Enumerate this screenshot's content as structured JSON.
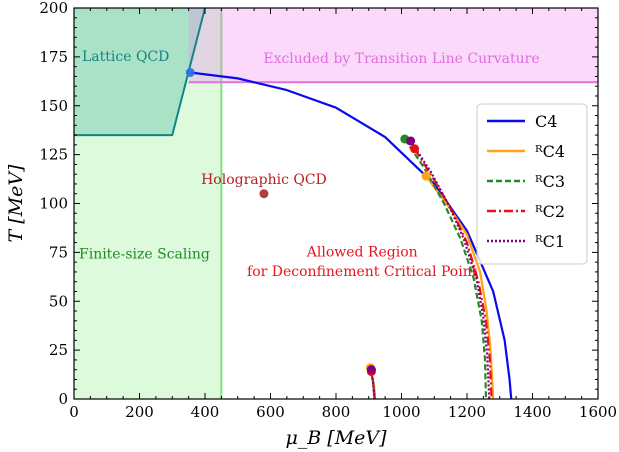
{
  "chart_data": {
    "type": "line",
    "xlabel": "μ_B [MeV]",
    "ylabel": "T [MeV]",
    "xlim": [
      0,
      1600
    ],
    "ylim": [
      0,
      200
    ],
    "xticks": [
      0,
      200,
      400,
      600,
      800,
      1000,
      1200,
      1400,
      1600
    ],
    "yticks": [
      0,
      25,
      50,
      75,
      100,
      125,
      150,
      175,
      200
    ],
    "grid": false,
    "legend_position": "right",
    "regions": [
      {
        "name": "lattice",
        "label": "Lattice QCD",
        "color": "#2e9fa6",
        "fill_opacity": 0.35,
        "edge": "#148585",
        "polygon": [
          [
            0,
            135
          ],
          [
            300,
            135
          ],
          [
            400,
            200
          ],
          [
            0,
            200
          ]
        ]
      },
      {
        "name": "finite-size",
        "label": "Finite-size Scaling",
        "color": "#90ee90",
        "fill_opacity": 0.3,
        "edge": "#7fe07f",
        "x_max": 450
      },
      {
        "name": "excluded",
        "label": "Excluded by Transition Line Curvature",
        "color": "#ee82ee",
        "fill_opacity": 0.3,
        "edge": "#e070e0",
        "x_min": 350,
        "y_min": 162
      }
    ],
    "annotations": [
      {
        "name": "holographic",
        "text": "Holographic QCD",
        "color": "#b22222",
        "x": 580,
        "y": 112
      },
      {
        "name": "allowed-1",
        "text": "Allowed Region",
        "color": "#e8141e",
        "x": 880,
        "y": 75
      },
      {
        "name": "allowed-2",
        "text": "for Deconfinement Critical Point",
        "color": "#e8141e",
        "x": 880,
        "y": 65
      },
      {
        "name": "lattice-label",
        "text": "Lattice QCD",
        "color": "#148585",
        "x": 170,
        "y": 175
      },
      {
        "name": "finite-label",
        "text": "Finite-size Scaling",
        "color": "#228b22",
        "x": 200,
        "y": 74
      },
      {
        "name": "excluded-label",
        "text": "Excluded by Transition Line Curvature",
        "color": "#e070e0",
        "x": 1000,
        "y": 174
      }
    ],
    "points": [
      {
        "name": "holographic-point",
        "x": 580,
        "y": 105,
        "color": "#a52a2a"
      },
      {
        "name": "lattice-endpoint",
        "x": 355,
        "y": 167,
        "color": "#2a6ff0"
      }
    ],
    "series": [
      {
        "name": "C4",
        "color": "#0a0aee",
        "dash": "",
        "points": [
          [
            355,
            167
          ],
          [
            500,
            164
          ],
          [
            650,
            158
          ],
          [
            800,
            149
          ],
          [
            950,
            134
          ],
          [
            1100,
            110
          ],
          [
            1200,
            86
          ],
          [
            1280,
            55
          ],
          [
            1315,
            30
          ],
          [
            1330,
            10
          ],
          [
            1335,
            0
          ]
        ]
      },
      {
        "name": "ᴿC4",
        "color": "#ffa515",
        "dash": "",
        "points": [
          [
            1075,
            114
          ],
          [
            1150,
            97
          ],
          [
            1200,
            84
          ],
          [
            1240,
            65
          ],
          [
            1260,
            45
          ],
          [
            1272,
            25
          ],
          [
            1280,
            0
          ]
        ],
        "endpoints": [
          [
            1075,
            114
          ],
          [
            905,
            16
          ]
        ],
        "lower": [
          [
            905,
            16
          ],
          [
            915,
            8
          ],
          [
            920,
            0
          ]
        ]
      },
      {
        "name": "ᴿC3",
        "color": "#248a24",
        "dash": "6,3",
        "points": [
          [
            1010,
            133
          ],
          [
            1070,
            118
          ],
          [
            1130,
            100
          ],
          [
            1180,
            82
          ],
          [
            1220,
            62
          ],
          [
            1245,
            40
          ],
          [
            1255,
            20
          ],
          [
            1258,
            0
          ]
        ],
        "endpoints": [
          [
            1010,
            133
          ],
          [
            908,
            15
          ]
        ],
        "lower": [
          [
            908,
            15
          ],
          [
            915,
            7
          ],
          [
            918,
            0
          ]
        ]
      },
      {
        "name": "ᴿC2",
        "color": "#ee1010",
        "dash": "9,3,2,3",
        "points": [
          [
            1040,
            128
          ],
          [
            1100,
            112
          ],
          [
            1155,
            96
          ],
          [
            1200,
            80
          ],
          [
            1235,
            60
          ],
          [
            1258,
            40
          ],
          [
            1270,
            20
          ],
          [
            1275,
            0
          ]
        ],
        "endpoints": [
          [
            1040,
            128
          ],
          [
            908,
            14
          ]
        ],
        "lower": [
          [
            908,
            14
          ],
          [
            914,
            7
          ],
          [
            918,
            0
          ]
        ]
      },
      {
        "name": "ᴿC1",
        "color": "#800080",
        "dash": "2,2",
        "points": [
          [
            1028,
            132
          ],
          [
            1090,
            116
          ],
          [
            1145,
            99
          ],
          [
            1190,
            82
          ],
          [
            1228,
            62
          ],
          [
            1250,
            42
          ],
          [
            1262,
            22
          ],
          [
            1268,
            0
          ]
        ],
        "endpoints": [
          [
            1028,
            132
          ],
          [
            908,
            15
          ]
        ],
        "lower": [
          [
            908,
            15
          ],
          [
            914,
            7
          ],
          [
            917,
            0
          ]
        ]
      }
    ]
  }
}
